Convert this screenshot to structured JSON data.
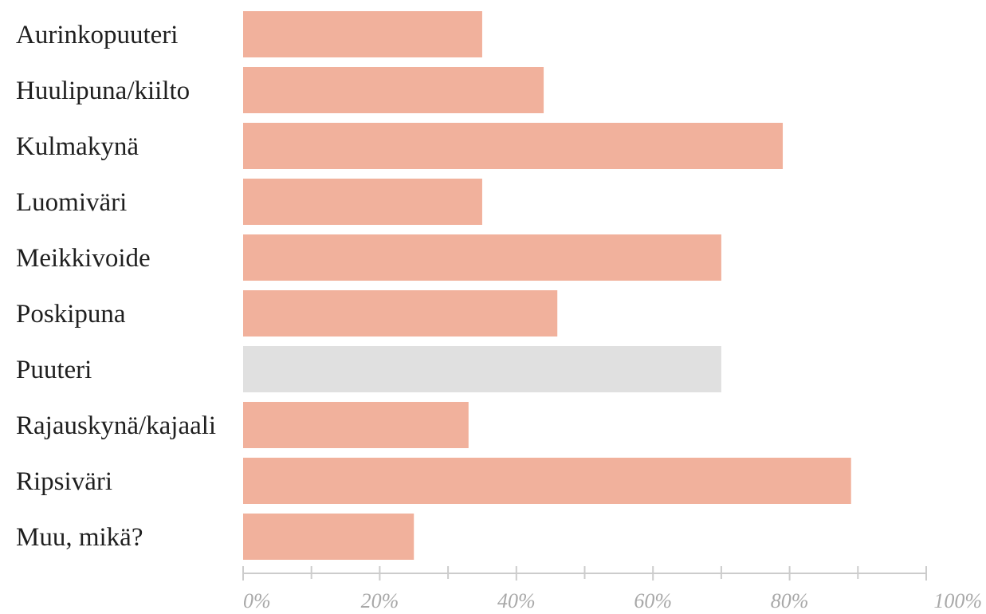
{
  "chart_data": {
    "type": "bar",
    "orientation": "horizontal",
    "categories": [
      "Aurinkopuuteri",
      "Huulipuna/kiilto",
      "Kulmakynä",
      "Luomiväri",
      "Meikkivoide",
      "Poskipuna",
      "Puuteri",
      "Rajauskynä/kajaali",
      "Ripsiväri",
      "Muu, mikä?"
    ],
    "values": [
      35,
      44,
      79,
      35,
      70,
      46,
      70,
      33,
      89,
      25
    ],
    "highlighted_category": "Puuteri",
    "xlim": [
      0,
      100
    ],
    "x_ticks": [
      "0%",
      "20%",
      "40%",
      "60%",
      "80%",
      "100%"
    ],
    "title": "",
    "xlabel": "",
    "ylabel": "",
    "grid": false,
    "colors": {
      "bar": "#f1b19c",
      "bar_highlight": "#e0e0e0",
      "axis": "#cccccc",
      "tick_text": "#a8a8a8",
      "label_text": "#1f1f1f"
    }
  }
}
